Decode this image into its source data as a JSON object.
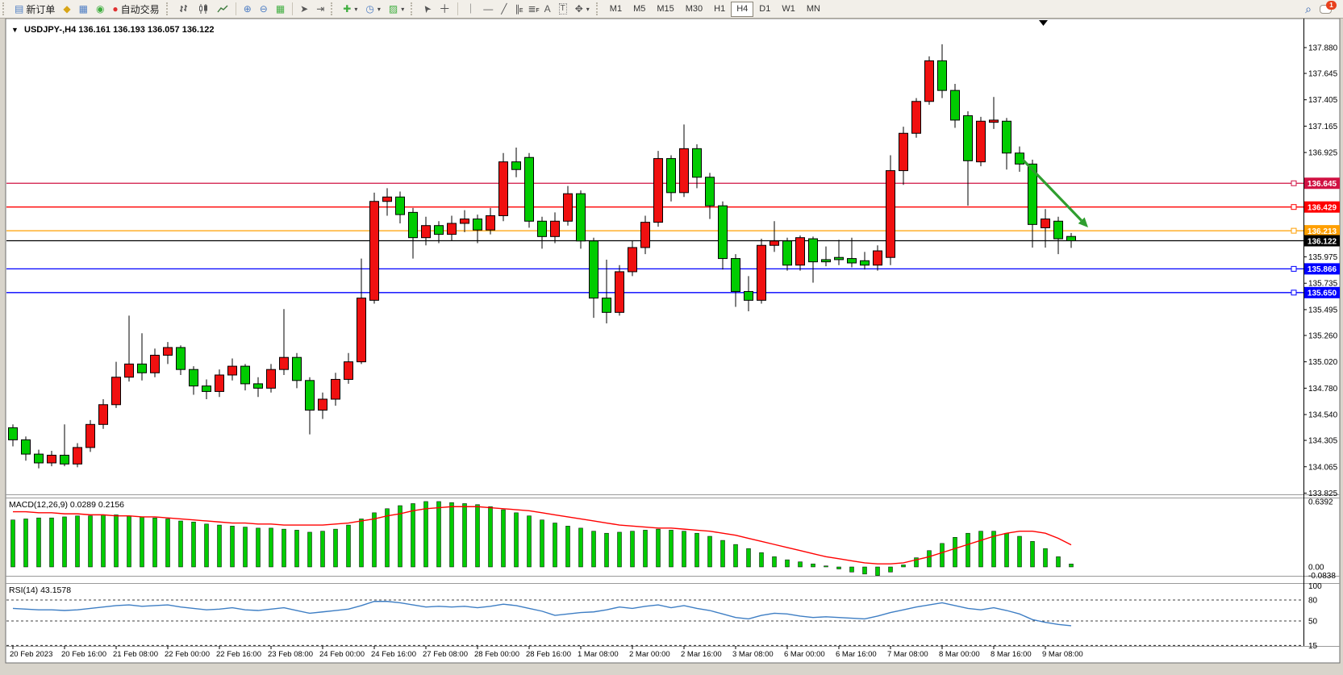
{
  "toolbar": {
    "new_order_label": "新订单",
    "auto_trading_label": "自动交易",
    "timeframes": [
      "M1",
      "M5",
      "M15",
      "M30",
      "H1",
      "H4",
      "D1",
      "W1",
      "MN"
    ],
    "active_timeframe": "H4",
    "notification_count": "1"
  },
  "chart_header": {
    "ohlc_line": "USDJPY-,H4  136.161 136.193 136.057 136.122"
  },
  "indicators": {
    "macd_label": "MACD(12,26,9) 0.0289 0.2156",
    "rsi_label": "RSI(14) 43.1578"
  },
  "chart_data": {
    "type": "candlestick",
    "symbol": "USDJPY-",
    "timeframe": "H4",
    "last_ohlc": {
      "open": 136.161,
      "high": 136.193,
      "low": 136.057,
      "close": 136.122
    },
    "ylim": [
      133.7,
      138.09
    ],
    "colors": {
      "bull": "#f01010",
      "bear": "#00cc00",
      "wick": "#000000",
      "macd_hist": "#00cc00",
      "macd_signal": "#ff0000",
      "rsi_line": "#3e7ec4",
      "axis_text": "#000000",
      "background": "#ffffff"
    },
    "price_axis_ticks": [
      "137.880",
      "137.645",
      "137.405",
      "137.165",
      "136.925",
      "135.975",
      "135.735",
      "135.495",
      "135.260",
      "135.020",
      "134.780",
      "134.540",
      "134.305",
      "134.065",
      "133.825"
    ],
    "hlines": [
      {
        "value": "136.645",
        "price": 136.645,
        "color": "#d11243"
      },
      {
        "value": "136.429",
        "price": 136.429,
        "color": "#ff0000"
      },
      {
        "value": "136.213",
        "price": 136.213,
        "color": "#ff9f00"
      },
      {
        "value": "136.122",
        "price": 136.122,
        "color": "#000000"
      },
      {
        "value": "135.866",
        "price": 135.866,
        "color": "#0000ff"
      },
      {
        "value": "135.650",
        "price": 135.65,
        "color": "#0000ff"
      }
    ],
    "time_labels": [
      "20 Feb 2023",
      "20 Feb 16:00",
      "21 Feb 08:00",
      "22 Feb 00:00",
      "22 Feb 16:00",
      "23 Feb 08:00",
      "24 Feb 00:00",
      "24 Feb 16:00",
      "27 Feb 08:00",
      "28 Feb 00:00",
      "28 Feb 16:00",
      "1 Mar 08:00",
      "2 Mar 00:00",
      "2 Mar 16:00",
      "3 Mar 08:00",
      "6 Mar 00:00",
      "6 Mar 16:00",
      "7 Mar 08:00",
      "8 Mar 00:00",
      "8 Mar 16:00",
      "9 Mar 08:00"
    ],
    "candles": [
      [
        134.42,
        134.45,
        134.25,
        134.31
      ],
      [
        134.31,
        134.34,
        134.12,
        134.18
      ],
      [
        134.18,
        134.22,
        134.05,
        134.1
      ],
      [
        134.1,
        134.21,
        134.07,
        134.17
      ],
      [
        134.17,
        134.45,
        134.07,
        134.09
      ],
      [
        134.09,
        134.28,
        134.06,
        134.24
      ],
      [
        134.24,
        134.49,
        134.2,
        134.45
      ],
      [
        134.45,
        134.68,
        134.41,
        134.63
      ],
      [
        134.63,
        135.02,
        134.6,
        134.88
      ],
      [
        134.88,
        135.44,
        134.84,
        135.0
      ],
      [
        135.0,
        135.28,
        134.85,
        134.92
      ],
      [
        134.92,
        135.14,
        134.88,
        135.08
      ],
      [
        135.08,
        135.2,
        135.0,
        135.15
      ],
      [
        135.15,
        135.17,
        134.9,
        134.95
      ],
      [
        134.95,
        134.98,
        134.72,
        134.8
      ],
      [
        134.8,
        134.86,
        134.68,
        134.75
      ],
      [
        134.75,
        134.95,
        134.7,
        134.9
      ],
      [
        134.9,
        135.05,
        134.85,
        134.98
      ],
      [
        134.98,
        135.0,
        134.76,
        134.82
      ],
      [
        134.82,
        134.88,
        134.7,
        134.78
      ],
      [
        134.78,
        135.0,
        134.74,
        134.95
      ],
      [
        134.95,
        135.5,
        134.9,
        135.06
      ],
      [
        135.06,
        135.1,
        134.78,
        134.85
      ],
      [
        134.85,
        134.88,
        134.36,
        134.58
      ],
      [
        134.58,
        134.74,
        134.5,
        134.68
      ],
      [
        134.68,
        134.92,
        134.62,
        134.86
      ],
      [
        134.86,
        135.1,
        134.82,
        135.02
      ],
      [
        135.02,
        135.96,
        135.0,
        135.6
      ],
      [
        135.58,
        136.56,
        135.55,
        136.48
      ],
      [
        136.48,
        136.6,
        136.35,
        136.52
      ],
      [
        136.52,
        136.57,
        136.28,
        136.36
      ],
      [
        136.38,
        136.42,
        135.96,
        136.15
      ],
      [
        136.15,
        136.34,
        136.08,
        136.26
      ],
      [
        136.26,
        136.3,
        136.1,
        136.18
      ],
      [
        136.18,
        136.35,
        136.12,
        136.28
      ],
      [
        136.28,
        136.4,
        136.2,
        136.32
      ],
      [
        136.32,
        136.36,
        136.1,
        136.22
      ],
      [
        136.22,
        136.42,
        136.18,
        136.35
      ],
      [
        136.35,
        136.92,
        136.3,
        136.84
      ],
      [
        136.84,
        136.97,
        136.7,
        136.77
      ],
      [
        136.88,
        136.92,
        136.24,
        136.3
      ],
      [
        136.3,
        136.34,
        136.05,
        136.16
      ],
      [
        136.16,
        136.38,
        136.1,
        136.3
      ],
      [
        136.3,
        136.62,
        136.26,
        136.55
      ],
      [
        136.55,
        136.58,
        136.05,
        136.12
      ],
      [
        136.12,
        136.15,
        135.42,
        135.6
      ],
      [
        135.6,
        135.95,
        135.37,
        135.47
      ],
      [
        135.47,
        135.9,
        135.44,
        135.84
      ],
      [
        135.84,
        136.12,
        135.8,
        136.06
      ],
      [
        136.06,
        136.35,
        136.0,
        136.29
      ],
      [
        136.29,
        136.94,
        136.25,
        136.87
      ],
      [
        136.87,
        136.9,
        136.48,
        136.56
      ],
      [
        136.56,
        137.18,
        136.52,
        136.96
      ],
      [
        136.96,
        137.0,
        136.6,
        136.7
      ],
      [
        136.7,
        136.74,
        136.32,
        136.44
      ],
      [
        136.44,
        136.48,
        135.86,
        135.96
      ],
      [
        135.96,
        136.0,
        135.52,
        135.66
      ],
      [
        135.66,
        135.8,
        135.48,
        135.58
      ],
      [
        135.58,
        136.14,
        135.55,
        136.08
      ],
      [
        136.08,
        136.3,
        136.02,
        136.12
      ],
      [
        136.12,
        136.15,
        135.85,
        135.9
      ],
      [
        135.9,
        136.17,
        135.85,
        136.15
      ],
      [
        136.14,
        136.16,
        135.74,
        135.93
      ],
      [
        135.95,
        136.07,
        135.89,
        135.93
      ],
      [
        135.97,
        136.13,
        135.9,
        135.95
      ],
      [
        135.96,
        136.15,
        135.88,
        135.92
      ],
      [
        135.94,
        136.02,
        135.86,
        135.9
      ],
      [
        135.9,
        136.08,
        135.85,
        136.03
      ],
      [
        135.97,
        136.9,
        135.9,
        136.76
      ],
      [
        136.76,
        137.16,
        136.63,
        137.1
      ],
      [
        137.1,
        137.42,
        137.06,
        137.39
      ],
      [
        137.39,
        137.8,
        137.36,
        137.76
      ],
      [
        137.76,
        137.91,
        137.42,
        137.49
      ],
      [
        137.49,
        137.55,
        137.15,
        137.22
      ],
      [
        137.26,
        137.3,
        136.44,
        136.85
      ],
      [
        136.84,
        137.25,
        136.8,
        137.21
      ],
      [
        137.2,
        137.43,
        137.14,
        137.22
      ],
      [
        137.21,
        137.24,
        136.77,
        136.92
      ],
      [
        136.92,
        136.98,
        136.75,
        136.82
      ],
      [
        136.82,
        136.86,
        136.06,
        136.27
      ],
      [
        136.24,
        136.41,
        136.06,
        136.32
      ],
      [
        136.3,
        136.34,
        136.0,
        136.14
      ],
      [
        136.161,
        136.193,
        136.057,
        136.122
      ]
    ],
    "macd": {
      "params": "12,26,9",
      "main_value": 0.0289,
      "signal_value": 0.2156,
      "axis_ticks": [
        "0.6392",
        "0.00",
        "-0.0838"
      ],
      "scale_max": 0.6392,
      "scale_min": -0.0838,
      "hist": [
        0.46,
        0.47,
        0.48,
        0.48,
        0.49,
        0.5,
        0.5,
        0.51,
        0.51,
        0.5,
        0.49,
        0.48,
        0.47,
        0.45,
        0.44,
        0.42,
        0.41,
        0.4,
        0.39,
        0.38,
        0.38,
        0.37,
        0.36,
        0.34,
        0.35,
        0.37,
        0.41,
        0.47,
        0.53,
        0.57,
        0.6,
        0.62,
        0.64,
        0.64,
        0.63,
        0.62,
        0.61,
        0.59,
        0.56,
        0.53,
        0.5,
        0.46,
        0.43,
        0.4,
        0.38,
        0.35,
        0.33,
        0.34,
        0.35,
        0.36,
        0.37,
        0.36,
        0.35,
        0.33,
        0.3,
        0.26,
        0.22,
        0.18,
        0.14,
        0.1,
        0.07,
        0.05,
        0.03,
        0.01,
        -0.02,
        -0.05,
        -0.07,
        -0.084,
        -0.05,
        0.02,
        0.09,
        0.16,
        0.23,
        0.29,
        0.33,
        0.35,
        0.35,
        0.33,
        0.3,
        0.25,
        0.18,
        0.1,
        0.029
      ],
      "signal": [
        0.54,
        0.54,
        0.53,
        0.53,
        0.52,
        0.52,
        0.51,
        0.51,
        0.5,
        0.5,
        0.49,
        0.49,
        0.48,
        0.47,
        0.46,
        0.45,
        0.44,
        0.43,
        0.43,
        0.42,
        0.42,
        0.41,
        0.41,
        0.41,
        0.41,
        0.42,
        0.43,
        0.45,
        0.47,
        0.5,
        0.52,
        0.55,
        0.57,
        0.58,
        0.59,
        0.59,
        0.59,
        0.58,
        0.57,
        0.56,
        0.55,
        0.53,
        0.51,
        0.49,
        0.47,
        0.45,
        0.43,
        0.41,
        0.4,
        0.39,
        0.38,
        0.38,
        0.37,
        0.36,
        0.35,
        0.33,
        0.31,
        0.28,
        0.25,
        0.22,
        0.19,
        0.16,
        0.13,
        0.1,
        0.08,
        0.06,
        0.04,
        0.03,
        0.03,
        0.04,
        0.07,
        0.1,
        0.14,
        0.18,
        0.22,
        0.26,
        0.3,
        0.33,
        0.35,
        0.35,
        0.33,
        0.28,
        0.216
      ]
    },
    "rsi": {
      "period": 14,
      "value": 43.1578,
      "axis_ticks": [
        "100",
        "80",
        "50",
        "15"
      ],
      "levels": [
        80,
        50,
        15
      ],
      "values": [
        68,
        67,
        66,
        66,
        65,
        66,
        68,
        70,
        72,
        73,
        71,
        72,
        73,
        70,
        68,
        66,
        67,
        69,
        66,
        65,
        67,
        69,
        65,
        61,
        63,
        65,
        67,
        72,
        78,
        78,
        76,
        73,
        70,
        71,
        70,
        71,
        69,
        71,
        74,
        72,
        68,
        64,
        58,
        60,
        62,
        63,
        66,
        70,
        68,
        71,
        73,
        69,
        72,
        68,
        65,
        60,
        55,
        53,
        58,
        61,
        60,
        57,
        55,
        56,
        55,
        54,
        53,
        57,
        62,
        66,
        70,
        73,
        76,
        72,
        68,
        66,
        69,
        65,
        60,
        52,
        48,
        45,
        43.16
      ]
    },
    "annotation_arrow": {
      "from": [
        1268,
        198
      ],
      "to": [
        1349,
        282
      ],
      "color": "#2f9e2f"
    }
  }
}
